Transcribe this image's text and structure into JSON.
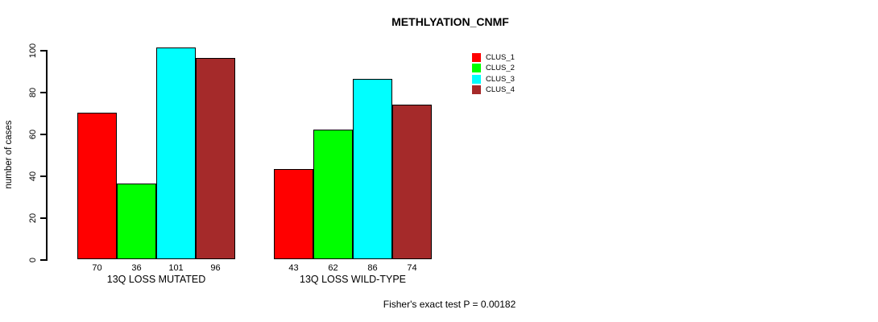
{
  "title": "METHLYATION_CNMF",
  "footer": "Fisher's exact test P = 0.00182",
  "chart_data": {
    "type": "bar",
    "title": "METHLYATION_CNMF",
    "xlabel": "",
    "ylabel": "number of cases",
    "ylim": [
      0,
      100
    ],
    "yticks": [
      0,
      20,
      40,
      60,
      80,
      100
    ],
    "grid": false,
    "legend_position": "right",
    "categories": [
      "13Q LOSS MUTATED",
      "13Q LOSS WILD-TYPE"
    ],
    "series": [
      {
        "name": "CLUS_1",
        "color": "#FF0000",
        "values": [
          70,
          43
        ]
      },
      {
        "name": "CLUS_2",
        "color": "#00FF00",
        "values": [
          36,
          62
        ]
      },
      {
        "name": "CLUS_3",
        "color": "#00FFFF",
        "values": [
          101,
          86
        ]
      },
      {
        "name": "CLUS_4",
        "color": "#A52A2A",
        "values": [
          96,
          74
        ]
      }
    ],
    "bar_value_labels": [
      [
        70,
        36,
        101,
        96
      ],
      [
        43,
        62,
        86,
        74
      ]
    ],
    "annotation": "Fisher's exact test P = 0.00182"
  }
}
